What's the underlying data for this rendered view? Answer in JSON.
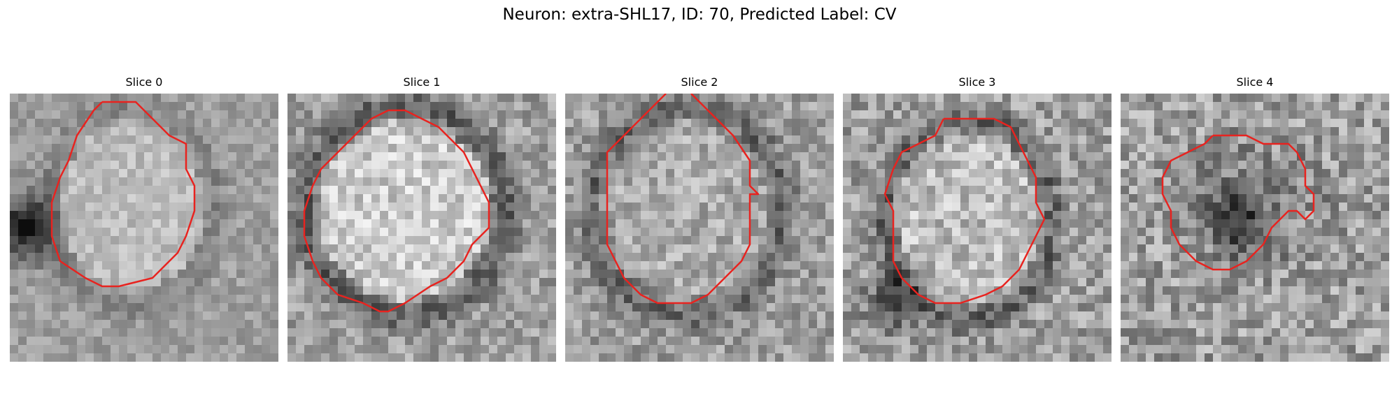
{
  "title": "Neuron: extra-SHL17, ID: 70, Predicted Label: CV",
  "overlay_color": "#e8231f",
  "panels": [
    {
      "label": "Slice 0"
    },
    {
      "label": "Slice 1"
    },
    {
      "label": "Slice 2"
    },
    {
      "label": "Slice 3"
    },
    {
      "label": "Slice 4"
    }
  ]
}
